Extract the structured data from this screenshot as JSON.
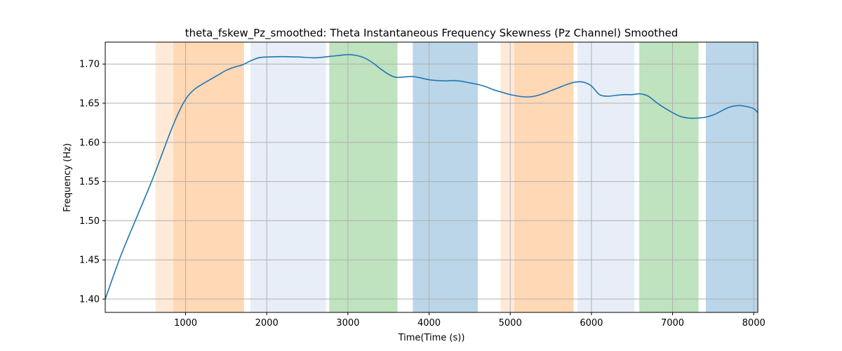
{
  "chart_data": {
    "type": "line",
    "title": "theta_fskew_Pz_smoothed: Theta Instantaneous Frequency Skewness (Pz Channel) Smoothed",
    "xlabel": "Time(Time (s))",
    "ylabel": "Frequency (Hz)",
    "xlim": [
      10,
      8050
    ],
    "ylim": [
      1.383,
      1.728
    ],
    "xticks": [
      1000,
      2000,
      3000,
      4000,
      5000,
      6000,
      7000,
      8000
    ],
    "xtick_labels": [
      "1000",
      "2000",
      "3000",
      "4000",
      "5000",
      "6000",
      "7000",
      "8000"
    ],
    "yticks": [
      1.4,
      1.45,
      1.5,
      1.55,
      1.6,
      1.65,
      1.7
    ],
    "ytick_labels": [
      "1.40",
      "1.45",
      "1.50",
      "1.55",
      "1.60",
      "1.65",
      "1.70"
    ],
    "grid": true,
    "line_color": "#1f77b4",
    "bands": [
      {
        "x0": 630,
        "x1": 850,
        "color": "#ff7f0e",
        "opacity": 0.16
      },
      {
        "x0": 850,
        "x1": 1720,
        "color": "#ff7f0e",
        "opacity": 0.3
      },
      {
        "x0": 1800,
        "x1": 2730,
        "color": "#aec7e8",
        "opacity": 0.3
      },
      {
        "x0": 2770,
        "x1": 3610,
        "color": "#2ca02c",
        "opacity": 0.3
      },
      {
        "x0": 3800,
        "x1": 4600,
        "color": "#1f77b4",
        "opacity": 0.3
      },
      {
        "x0": 4880,
        "x1": 5050,
        "color": "#ff7f0e",
        "opacity": 0.16
      },
      {
        "x0": 5050,
        "x1": 5780,
        "color": "#ff7f0e",
        "opacity": 0.3
      },
      {
        "x0": 5830,
        "x1": 6530,
        "color": "#aec7e8",
        "opacity": 0.3
      },
      {
        "x0": 6590,
        "x1": 7320,
        "color": "#2ca02c",
        "opacity": 0.3
      },
      {
        "x0": 7410,
        "x1": 8050,
        "color": "#1f77b4",
        "opacity": 0.3
      }
    ],
    "series": [
      {
        "x": [
          10,
          200,
          400,
          600,
          800,
          900,
          1000,
          1100,
          1200,
          1300,
          1400,
          1500,
          1600,
          1700,
          1800,
          1900,
          2000,
          2200,
          2400,
          2600,
          2800,
          3000,
          3100,
          3200,
          3300,
          3400,
          3500,
          3600,
          3800,
          4000,
          4100,
          4200,
          4300,
          4400,
          4500,
          4600,
          4700,
          4800,
          4900,
          5000,
          5100,
          5200,
          5300,
          5400,
          5500,
          5600,
          5700,
          5800,
          5900,
          6000,
          6100,
          6200,
          6300,
          6400,
          6500,
          6600,
          6700,
          6800,
          6900,
          7000,
          7100,
          7200,
          7300,
          7400,
          7500,
          7600,
          7700,
          7800,
          7900,
          8000,
          8050
        ],
        "values": [
          1.4,
          1.455,
          1.505,
          1.555,
          1.61,
          1.635,
          1.655,
          1.667,
          1.674,
          1.68,
          1.686,
          1.692,
          1.696,
          1.699,
          1.704,
          1.708,
          1.709,
          1.7095,
          1.709,
          1.708,
          1.71,
          1.712,
          1.711,
          1.708,
          1.702,
          1.694,
          1.687,
          1.683,
          1.684,
          1.68,
          1.679,
          1.6785,
          1.679,
          1.678,
          1.676,
          1.674,
          1.671,
          1.667,
          1.664,
          1.661,
          1.659,
          1.658,
          1.659,
          1.662,
          1.666,
          1.67,
          1.674,
          1.677,
          1.677,
          1.672,
          1.661,
          1.659,
          1.66,
          1.661,
          1.661,
          1.662,
          1.659,
          1.651,
          1.644,
          1.638,
          1.633,
          1.631,
          1.631,
          1.632,
          1.635,
          1.64,
          1.645,
          1.647,
          1.646,
          1.643,
          1.638
        ]
      }
    ]
  }
}
